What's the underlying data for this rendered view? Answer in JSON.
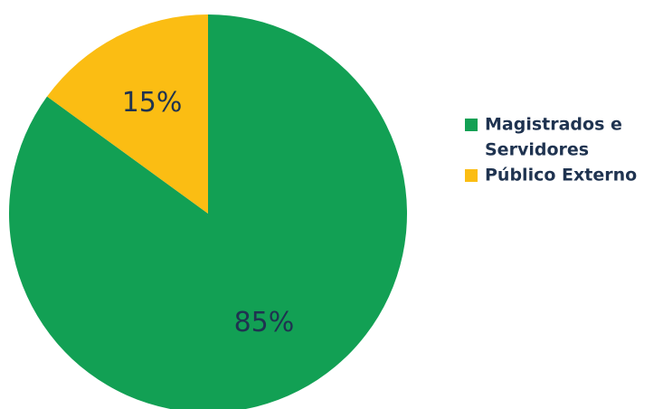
{
  "chart_data": {
    "type": "pie",
    "slices": [
      {
        "label": "Magistrados e Servidores",
        "legend_lines": [
          "Magistrados e",
          "Servidores"
        ],
        "value": 85,
        "display": "85%",
        "color": "#12a054"
      },
      {
        "label": "Público Externo",
        "legend_lines": [
          "Público Externo"
        ],
        "value": 15,
        "display": "15%",
        "color": "#fbbd13"
      }
    ],
    "start": "top",
    "direction": "clockwise",
    "legend_position": "right"
  }
}
